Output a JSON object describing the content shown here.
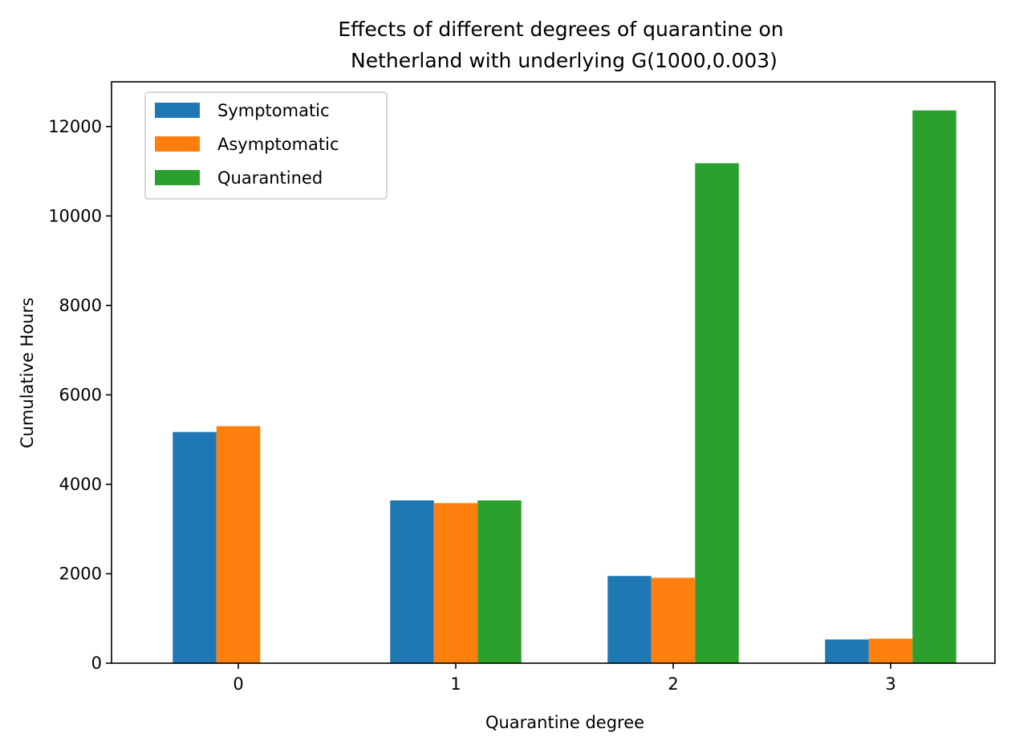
{
  "chart_data": {
    "type": "bar",
    "title_line1": "Effects of different degrees of quarantine on",
    "title_line2": " Netherland with underlying G(1000,0.003)",
    "xlabel": "Quarantine degree",
    "ylabel": "Cumulative Hours",
    "categories": [
      "0",
      "1",
      "2",
      "3"
    ],
    "ylim": [
      0,
      13000
    ],
    "yticks": [
      0,
      2000,
      4000,
      6000,
      8000,
      10000,
      12000
    ],
    "ytick_labels": [
      "0",
      "2000",
      "4000",
      "6000",
      "8000",
      "10000",
      "12000"
    ],
    "legend_position": "top-left",
    "grid": false,
    "series": [
      {
        "name": "Symptomatic",
        "color": "#1f77b4",
        "values": [
          5170,
          3640,
          1950,
          530
        ]
      },
      {
        "name": "Asymptomatic",
        "color": "#ff7f0e",
        "values": [
          5300,
          3580,
          1910,
          550
        ]
      },
      {
        "name": "Quarantined",
        "color": "#2ca02c",
        "values": [
          0,
          3640,
          11180,
          12360
        ]
      }
    ]
  }
}
